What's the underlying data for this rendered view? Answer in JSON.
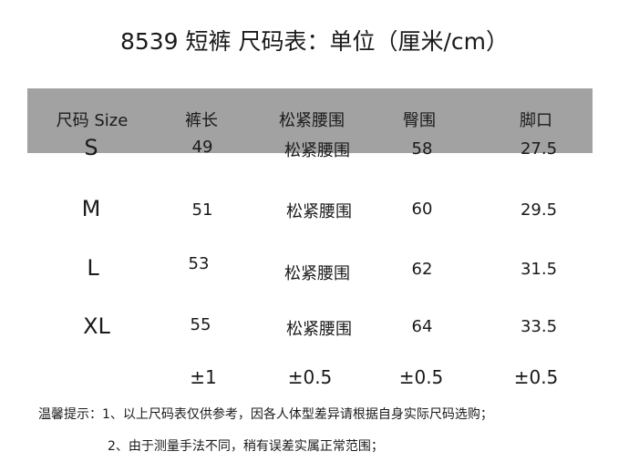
{
  "title": "8539 短裤  尺码表：单位（厘米/cm）",
  "header": {
    "bg_color": "#a2a2a2",
    "columns": [
      "尺码 Size",
      "裤长",
      "松紧腰围",
      "臀围",
      "脚口"
    ]
  },
  "rows": [
    {
      "size": "S",
      "length": "49",
      "waist": "松紧腰围",
      "hip": "58",
      "hem": "27.5"
    },
    {
      "size": "M",
      "length": "51",
      "waist": "松紧腰围",
      "hip": "60",
      "hem": "29.5"
    },
    {
      "size": "L",
      "length": "53",
      "waist": "松紧腰围",
      "hip": "62",
      "hem": "31.5"
    },
    {
      "size": "XL",
      "length": "55",
      "waist": "松紧腰围",
      "hip": "64",
      "hem": "33.5"
    }
  ],
  "tolerance": {
    "length": "±1",
    "waist": "±0.5",
    "hip": "±0.5",
    "hem": "±0.5"
  },
  "notes": [
    "温馨提示：1、以上尺码表仅供参考，因各人体型差异请根据自身实际尺码选购；",
    "2、由于测量手法不同，稍有误差实属正常范围；"
  ]
}
